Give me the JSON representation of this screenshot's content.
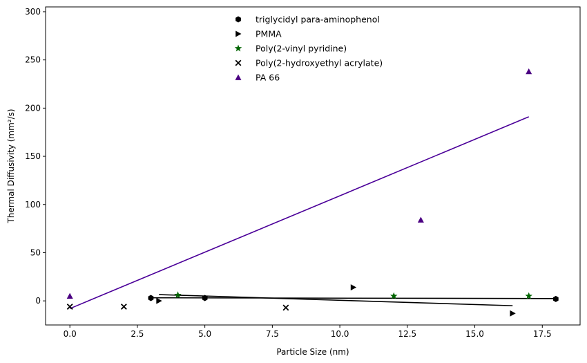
{
  "chart_data": {
    "type": "scatter",
    "xlabel": "Particle Size (nm)",
    "ylabel": "Thermal Diffusivity (mm²/s)",
    "xlim": [
      -0.9,
      18.9
    ],
    "ylim": [
      -25,
      305
    ],
    "x_ticks": [
      0.0,
      2.5,
      5.0,
      7.5,
      10.0,
      12.5,
      15.0,
      17.5
    ],
    "x_tick_labels": [
      "0.0",
      "2.5",
      "5.0",
      "7.5",
      "10.0",
      "12.5",
      "15.0",
      "17.5"
    ],
    "y_ticks": [
      0,
      50,
      100,
      150,
      200,
      250,
      300
    ],
    "y_tick_labels": [
      "0",
      "50",
      "100",
      "150",
      "200",
      "250",
      "300"
    ],
    "grid": false,
    "legend_position": "top-center",
    "series": [
      {
        "name": "triglycidyl para-aminophenol",
        "marker": "hexagon",
        "color": "#000000",
        "points": [
          [
            3.0,
            3
          ],
          [
            5.0,
            3
          ],
          [
            18.0,
            2
          ]
        ],
        "trend": [
          [
            3.0,
            3.2
          ],
          [
            18.0,
            2.4
          ]
        ]
      },
      {
        "name": "PMMA",
        "marker": "triangle-right",
        "color": "#000000",
        "points": [
          [
            3.3,
            0
          ],
          [
            10.5,
            14
          ],
          [
            16.4,
            -13
          ]
        ],
        "trend": [
          [
            3.3,
            6.5
          ],
          [
            16.4,
            -5
          ]
        ]
      },
      {
        "name": "Poly(2-vinyl pyridine)",
        "marker": "star",
        "color": "#006400",
        "points": [
          [
            4.0,
            6
          ],
          [
            12.0,
            5
          ],
          [
            17.0,
            5
          ]
        ]
      },
      {
        "name": "Poly(2-hydroxyethyl acrylate)",
        "marker": "x",
        "color": "#000000",
        "points": [
          [
            0.0,
            -6
          ],
          [
            2.0,
            -6
          ],
          [
            8.0,
            -7
          ]
        ]
      },
      {
        "name": "PA 66",
        "marker": "triangle-up",
        "color": "#4b0082",
        "points": [
          [
            0.0,
            5
          ],
          [
            13.0,
            84
          ],
          [
            17.0,
            238
          ]
        ],
        "trend": [
          [
            0.0,
            -8
          ],
          [
            17.0,
            191
          ]
        ],
        "trend_color": "#4b0099"
      }
    ]
  }
}
